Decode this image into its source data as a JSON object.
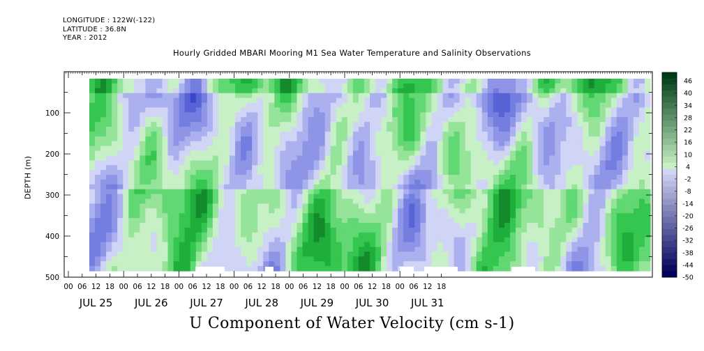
{
  "header": {
    "longitude": "LONGITUDE : 122W(-122)",
    "latitude": "LATITUDE : 36.8N",
    "year": "YEAR : 2012",
    "title": "Hourly Gridded MBARI Mooring M1 Sea Water Temperature and Salinity Observations"
  },
  "chart_data": {
    "type": "heatmap",
    "title": "U Component of Water Velocity (cm s-1)",
    "xlabel": "",
    "ylabel": "DEPTH (m)",
    "y_axis": {
      "range": [
        500,
        0
      ],
      "ticks": [
        100,
        200,
        300,
        400,
        500
      ],
      "inverted": true
    },
    "x_axis": {
      "hour_ticks": [
        "00",
        "06",
        "12",
        "18",
        "00",
        "06",
        "12",
        "18",
        "00",
        "06",
        "12",
        "18",
        "00",
        "06",
        "12",
        "18",
        "00",
        "06",
        "12",
        "18",
        "00",
        "06",
        "12",
        "18",
        "00",
        "06",
        "12",
        "18"
      ],
      "day_labels": [
        "JUL 25",
        "JUL 26",
        "JUL 27",
        "JUL 28",
        "JUL 29",
        "JUL 30",
        "JUL 31"
      ]
    },
    "colorbar": {
      "min": -50,
      "max": 50,
      "labels": [
        "46",
        "40",
        "34",
        "28",
        "22",
        "16",
        "10",
        "4",
        "-2",
        "-8",
        "-14",
        "-20",
        "-26",
        "-32",
        "-38",
        "-44",
        "-50"
      ]
    },
    "colors": {
      "negative": "#8e95e6",
      "positive": "#3fd85a",
      "extreme_neg": "#000060",
      "extreme_pos": "#003010"
    }
  }
}
